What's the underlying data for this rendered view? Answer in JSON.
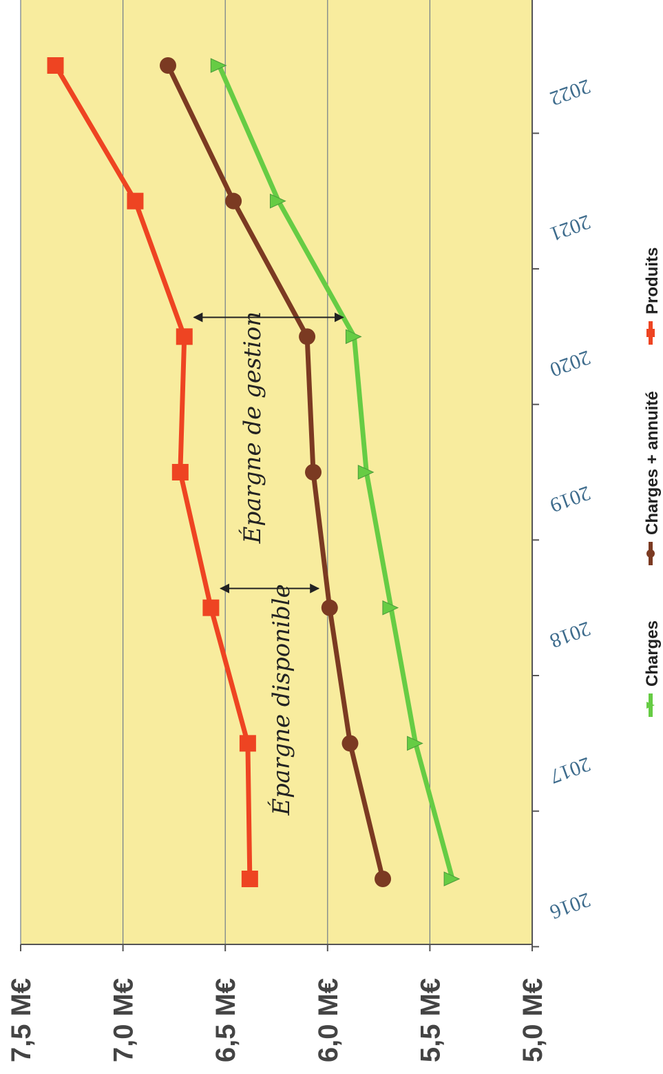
{
  "chart_data": {
    "type": "line",
    "orientation": "rotated-90-clockwise",
    "title": "",
    "xlabel": "",
    "ylabel": "",
    "categories": [
      "2016",
      "2017",
      "2018",
      "2019",
      "2020",
      "2021",
      "2022"
    ],
    "y_ticks": [
      "5,0 M€",
      "5,5 M€",
      "6,0 M€",
      "6,5 M€",
      "7,0 M€",
      "7,5 M€"
    ],
    "ylim": [
      5.0,
      7.5
    ],
    "grid": true,
    "background": "#f8ec9e",
    "legend_position": "bottom",
    "series": [
      {
        "name": "Charges",
        "color": "#66cc44",
        "marker": "triangle",
        "values": [
          5.39,
          5.57,
          5.69,
          5.81,
          5.87,
          6.24,
          6.53
        ]
      },
      {
        "name": "Charges + annuité",
        "color": "#7b3a22",
        "marker": "circle",
        "values": [
          5.73,
          5.89,
          5.99,
          6.07,
          6.1,
          6.46,
          6.78
        ]
      },
      {
        "name": "Produits",
        "color": "#ee4422",
        "marker": "square",
        "values": [
          6.38,
          6.39,
          6.57,
          6.72,
          6.7,
          6.94,
          7.33
        ]
      }
    ],
    "annotations": [
      {
        "text": "Épargne de gestion",
        "category": "2020",
        "from": "Produits",
        "to": "Charges"
      },
      {
        "text": "Épargne disponible",
        "category": "2018",
        "from": "Produits",
        "to": "Charges + annuité"
      }
    ]
  }
}
